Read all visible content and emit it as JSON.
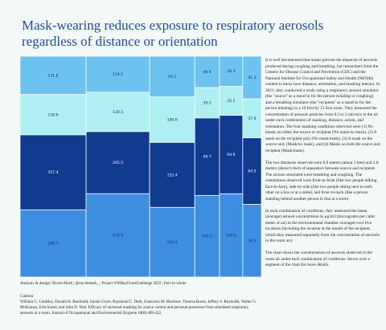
{
  "chart_data": {
    "type": "marimekko",
    "title": "Mask-wearing reduces exposure to respiratory aerosols regardless of distance or orientation",
    "series": [
      {
        "color": "#6cc3ef",
        "values": [
          131.6,
          119.1,
          95.7,
          40.4,
          36.3,
          41.3
        ]
      },
      {
        "color": "#aef0f1",
        "values": [
          138.6,
          130.5,
          106.6,
          39.2,
          35.2,
          37.8
        ]
      },
      {
        "color": "#103b8f",
        "values": [
          257.4,
          205.5,
          152.4,
          99.7,
          94.8,
          64.5
        ]
      },
      {
        "color": "#3d8de0",
        "values": [
          230.7,
          275.5,
          163.3,
          105.1,
          100.6,
          70.3
        ]
      }
    ],
    "paragraphs": [
      "It is well documented that masks prevent the dispersal of aerosols produced during coughing and breathing, but researchers from the Centers for Disease Control and Prevention (CDC) and the National Institute for Occupational Safety and Health (NIOSH) wanted to know how distance, orientation, and masking interact. In 2021, they conducted a study using a respiratory aerosol simulator (the \"source\" as a stand-in for the person exhaling or coughing) and a breathing simulator (the \"recipient\" as a stand-in for the person inhaling) in a 10 foot by 15 foot room. They measured the concentration of aerosols particles from 0.3 to 3 microns in the air under each combination of masking, distance, action, and orientation. The four masking conditions observed were (1) No masks on either the source or recipient (No mask/no mask), (2) A mask on the recipient only (No mask/mask), (3) A mask on the source only (Mask/no mask), and (4) Masks on both the source and recipient (Mask/mask).",
      "The two distances observed were 0.9 meters (about 3 feet) and 1.8 meters (about 6 feet) of separation between source and recipient. The actions simulated were breathing and coughing. The orientations observed were front-to-front (like two people talking face-to-face), side-by-side (like two people sitting next to each other on a bus or at a table), and front-to-back (like a person standing behind another person in line at a store).",
      "In each combination of conditions, they measured the mean (average) aerosol concentration in µg/m3 (micrograms per cubic meter of air) in the environmental chamber averaged over five locations (including the location at the mouth of the recipient, which they measured separately from the concentration of aerosols in the room air).",
      "The chart shows the concentrations of aerosols observed in the room air under each combination of conditions. Hover over a segment of the chart for more details."
    ],
    "credit": "Analysis & design: Nicole Mark | @nicolemark_ | Project #30DayChartChallenge 2022 | Part-to-whole",
    "citation_label": "Citation:",
    "citation": "William G. Lindsley, Donald H. Beezhold, Jayme Coyle, Raymond C. Derk, Francoise M. Blachere, Theresa Boots, Jeffrey S. Reynolds, Walter G. McKinney, Erik Sinsel, and John D. Noti. Efficacy of universal masking for source control and personal protection from simulated respiratory aerosols in a room. Journal of Occupational and Environmental Hygiene 18(8):409-422."
  }
}
